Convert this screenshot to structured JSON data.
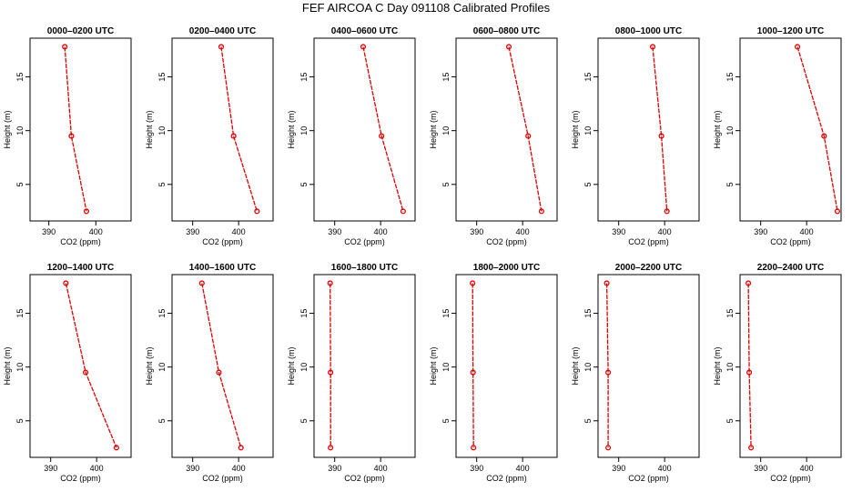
{
  "title": "FEF AIRCOA C  Day 091108  Calibrated Profiles",
  "colors": {
    "series": "#dd0000",
    "axis": "#000000",
    "background": "#ffffff"
  },
  "chart_data": [
    {
      "type": "line",
      "title": "0000–0200 UTC",
      "xlabel": "CO2 (ppm)",
      "ylabel": "Height (m)",
      "xlim": [
        386,
        407.5
      ],
      "ylim": [
        1.6,
        18.6
      ],
      "x_ticks": [
        "390",
        "400"
      ],
      "y_ticks": [
        "5",
        "10",
        "15"
      ],
      "x": [
        393.4,
        394.8,
        398.0
      ],
      "y": [
        17.8,
        9.5,
        2.5
      ]
    },
    {
      "type": "line",
      "title": "0200–0400 UTC",
      "xlabel": "CO2 (ppm)",
      "ylabel": "Height (m)",
      "xlim": [
        385.5,
        407.5
      ],
      "ylim": [
        1.6,
        18.6
      ],
      "x_ticks": [
        "390",
        "400",
        ""
      ],
      "y_ticks": [
        "5",
        "10",
        "15"
      ],
      "x": [
        396.2,
        398.9,
        404.0
      ],
      "y": [
        17.8,
        9.5,
        2.5
      ]
    },
    {
      "type": "line",
      "title": "0400–0600 UTC",
      "xlabel": "CO2 (ppm)",
      "ylabel": "Height (m)",
      "xlim": [
        385.5,
        407.5
      ],
      "ylim": [
        1.6,
        18.6
      ],
      "x_ticks": [
        "390",
        "400",
        ""
      ],
      "y_ticks": [
        "5",
        "10",
        "15"
      ],
      "x": [
        396.2,
        400.2,
        404.9
      ],
      "y": [
        17.8,
        9.5,
        2.5
      ]
    },
    {
      "type": "line",
      "title": "0600–0800 UTC",
      "xlabel": "CO2 (ppm)",
      "ylabel": "Height (m)",
      "xlim": [
        385.5,
        407.5
      ],
      "ylim": [
        1.6,
        18.6
      ],
      "x_ticks": [
        "390",
        "400",
        ""
      ],
      "y_ticks": [
        "5",
        "10",
        "15"
      ],
      "x": [
        397.0,
        401.2,
        404.1
      ],
      "y": [
        17.8,
        9.5,
        2.5
      ]
    },
    {
      "type": "line",
      "title": "0800–1000 UTC",
      "xlabel": "CO2 (ppm)",
      "ylabel": "Height (m)",
      "xlim": [
        385.5,
        407.5
      ],
      "ylim": [
        1.6,
        18.6
      ],
      "x_ticks": [
        "390",
        "400",
        ""
      ],
      "y_ticks": [
        "5",
        "10",
        "15"
      ],
      "x": [
        397.4,
        399.3,
        400.5
      ],
      "y": [
        17.8,
        9.5,
        2.5
      ]
    },
    {
      "type": "line",
      "title": "1000–1200 UTC",
      "xlabel": "CO2 (ppm)",
      "ylabel": "Height (m)",
      "xlim": [
        385.5,
        407.5
      ],
      "ylim": [
        1.6,
        18.6
      ],
      "x_ticks": [
        "390",
        "400",
        ""
      ],
      "y_ticks": [
        "5",
        "10",
        "15"
      ],
      "x": [
        398.0,
        403.8,
        406.7
      ],
      "y": [
        17.8,
        9.5,
        2.5
      ]
    },
    {
      "type": "line",
      "title": "1200–1400 UTC",
      "xlabel": "CO2 (ppm)",
      "ylabel": "Height (m)",
      "xlim": [
        385.5,
        407.5
      ],
      "ylim": [
        1.6,
        18.6
      ],
      "x_ticks": [
        "390",
        "400",
        ""
      ],
      "y_ticks": [
        "5",
        "10",
        "15"
      ],
      "x": [
        393.3,
        397.6,
        404.3
      ],
      "y": [
        17.8,
        9.5,
        2.5
      ]
    },
    {
      "type": "line",
      "title": "1400–1600 UTC",
      "xlabel": "CO2 (ppm)",
      "ylabel": "Height (m)",
      "xlim": [
        385.5,
        407.5
      ],
      "ylim": [
        1.6,
        18.6
      ],
      "x_ticks": [
        "390",
        "400",
        ""
      ],
      "y_ticks": [
        "5",
        "10",
        "15"
      ],
      "x": [
        392.0,
        395.7,
        400.5
      ],
      "y": [
        17.8,
        9.5,
        2.5
      ]
    },
    {
      "type": "line",
      "title": "1600–1800 UTC",
      "xlabel": "CO2 (ppm)",
      "ylabel": "Height (m)",
      "xlim": [
        385.5,
        407.5
      ],
      "ylim": [
        1.6,
        18.6
      ],
      "x_ticks": [
        "390",
        "400",
        ""
      ],
      "y_ticks": [
        "5",
        "10",
        "15"
      ],
      "x": [
        389.0,
        389.1,
        389.1
      ],
      "y": [
        17.8,
        9.5,
        2.5
      ]
    },
    {
      "type": "line",
      "title": "1800–2000 UTC",
      "xlabel": "CO2 (ppm)",
      "ylabel": "Height (m)",
      "xlim": [
        385.5,
        407.5
      ],
      "ylim": [
        1.6,
        18.6
      ],
      "x_ticks": [
        "390",
        "400",
        ""
      ],
      "y_ticks": [
        "5",
        "10",
        "15"
      ],
      "x": [
        389.1,
        389.2,
        389.3
      ],
      "y": [
        17.8,
        9.5,
        2.5
      ]
    },
    {
      "type": "line",
      "title": "2000–2200 UTC",
      "xlabel": "CO2 (ppm)",
      "ylabel": "Height (m)",
      "xlim": [
        385.5,
        407.5
      ],
      "ylim": [
        1.6,
        18.6
      ],
      "x_ticks": [
        "390",
        "400",
        ""
      ],
      "y_ticks": [
        "5",
        "10",
        "15"
      ],
      "x": [
        387.4,
        387.7,
        387.7
      ],
      "y": [
        17.8,
        9.5,
        2.5
      ]
    },
    {
      "type": "line",
      "title": "2200–2400 UTC",
      "xlabel": "CO2 (ppm)",
      "ylabel": "Height (m)",
      "xlim": [
        385.5,
        407.5
      ],
      "ylim": [
        1.6,
        18.6
      ],
      "x_ticks": [
        "390",
        "400",
        ""
      ],
      "y_ticks": [
        "5",
        "10",
        "15"
      ],
      "x": [
        387.3,
        387.5,
        387.9
      ],
      "y": [
        17.8,
        9.5,
        2.5
      ]
    }
  ]
}
